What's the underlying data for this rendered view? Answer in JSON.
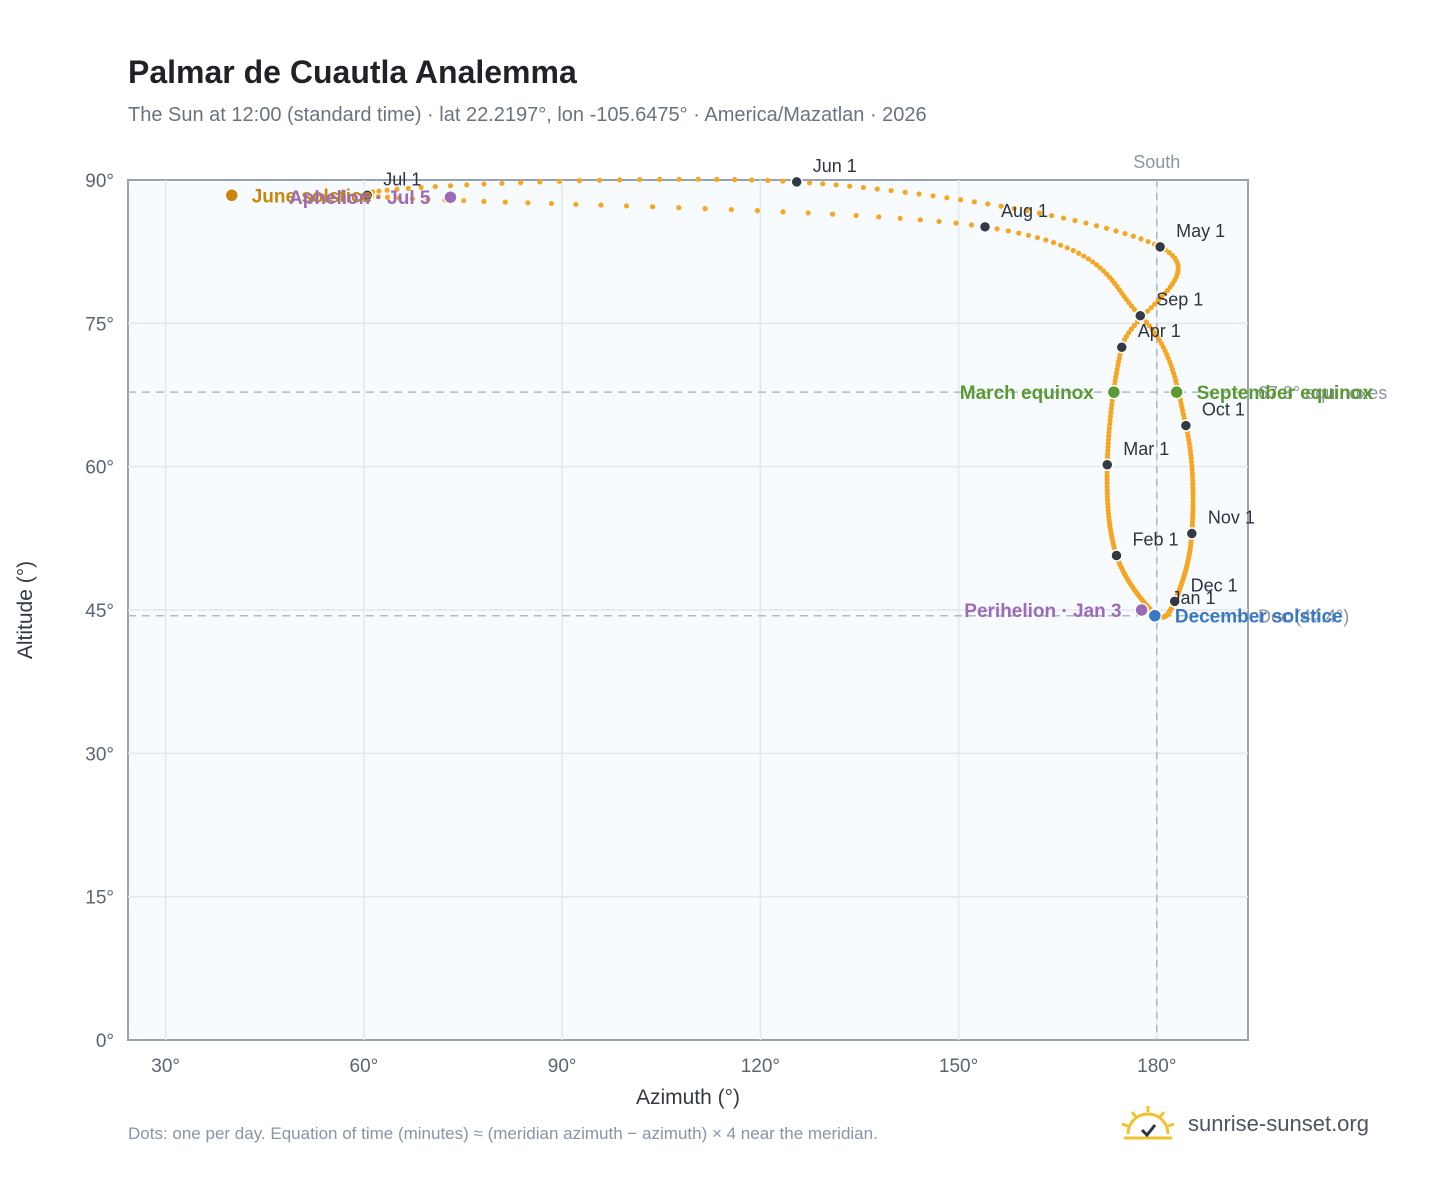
{
  "header": {
    "title": "Palmar de Cuautla Analemma",
    "subtitle": "The Sun at 12:00 (standard time) · lat 22.2197°, lon -105.6475° · America/Mazatlan · 2026"
  },
  "footer": {
    "note": "Dots: one per day. Equation of time (minutes) ≈ (meridian azimuth − azimuth) × 4 near the meridian.",
    "brand": "sunrise-sunset.org"
  },
  "colors": {
    "path": "#f5a623",
    "month_dot": "#333a44",
    "equinox": "#5a9a32",
    "solstice_june": "#c8860a",
    "solstice_december": "#3a78c2",
    "apsis": "#9b6bb8",
    "plot_bg": "#f8fbfe",
    "grid": "#e3e8ee",
    "axis": "#97a3b3",
    "brand_sun": "#f2c12e"
  },
  "icons": {
    "brand": "sun-check-icon"
  },
  "chart_data": {
    "type": "scatter",
    "xlabel": "Azimuth (°)",
    "ylabel": "Altitude (°)",
    "xlim": [
      24.3,
      193.8
    ],
    "ylim": [
      0,
      90
    ],
    "xticks": [
      30,
      60,
      90,
      120,
      150,
      180
    ],
    "yticks": [
      0,
      15,
      30,
      45,
      60,
      75,
      90
    ],
    "tick_suffix": "°",
    "grid": true,
    "meridian": {
      "azimuth": 180,
      "label": "South"
    },
    "ref_lines": [
      {
        "altitude": 67.8,
        "label": "67.8° equinoxes"
      },
      {
        "altitude": 44.4,
        "label": "Dec (44.4°)"
      }
    ],
    "month_points": [
      {
        "label": "Jan 1",
        "az": 179.8,
        "alt": 44.6
      },
      {
        "label": "Feb 1",
        "az": 173.9,
        "alt": 50.7
      },
      {
        "label": "Mar 1",
        "az": 172.5,
        "alt": 60.2
      },
      {
        "label": "Apr 1",
        "az": 174.7,
        "alt": 72.5
      },
      {
        "label": "May 1",
        "az": 180.5,
        "alt": 83.0
      },
      {
        "label": "Jun 1",
        "az": 125.5,
        "alt": 89.8
      },
      {
        "label": "Jul 1",
        "az": 60.5,
        "alt": 88.4
      },
      {
        "label": "Aug 1",
        "az": 154.0,
        "alt": 85.1
      },
      {
        "label": "Sep 1",
        "az": 177.5,
        "alt": 75.8
      },
      {
        "label": "Oct 1",
        "az": 184.4,
        "alt": 64.3
      },
      {
        "label": "Nov 1",
        "az": 185.3,
        "alt": 53.0
      },
      {
        "label": "Dec 1",
        "az": 182.7,
        "alt": 45.9
      }
    ],
    "events": [
      {
        "label": "March equinox",
        "az": 173.5,
        "alt": 67.8,
        "kind": "equinox",
        "side": "left"
      },
      {
        "label": "September equinox",
        "az": 183.0,
        "alt": 67.8,
        "kind": "equinox",
        "side": "right"
      },
      {
        "label": "June solstice",
        "az": 40.0,
        "alt": 88.4,
        "kind": "solstice_june",
        "side": "right"
      },
      {
        "label": "December solstice",
        "az": 179.7,
        "alt": 44.4,
        "kind": "solstice_december",
        "side": "right"
      },
      {
        "label": "Perihelion · Jan 3",
        "az": 177.7,
        "alt": 45.0,
        "kind": "apsis",
        "side": "left"
      },
      {
        "label": "Aphelion · Jul 5",
        "az": 73.1,
        "alt": 88.2,
        "kind": "apsis",
        "side": "left"
      }
    ]
  }
}
